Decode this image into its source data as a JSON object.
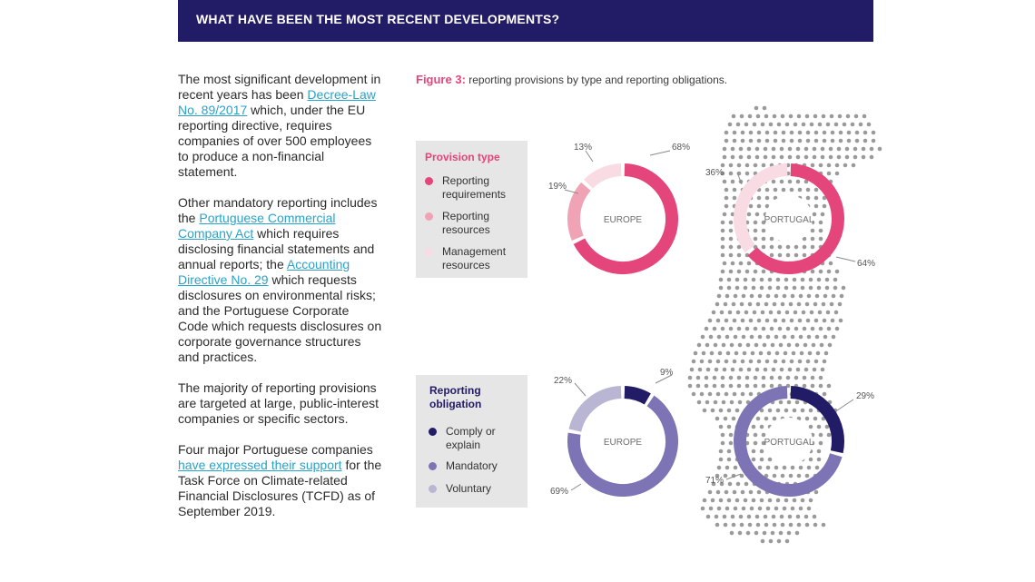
{
  "header": {
    "title": "WHAT HAVE BEEN THE MOST RECENT DEVELOPMENTS?"
  },
  "left_text": {
    "p1_a": "The most significant development in recent years has been ",
    "p1_link": "Decree-Law No. 89/2017",
    "p1_b": " which, under the EU reporting directive, requires companies of over 500 employees to produce a non-financial statement.",
    "p2_a": "Other mandatory reporting includes the ",
    "p2_link1": "Portuguese Commercial Company Act",
    "p2_b": " which requires disclosing financial statements and annual reports; the ",
    "p2_link2": "Accounting Directive No. 29",
    "p2_c": " which requests disclosures on environmental risks;  and the Portuguese Corporate Code which requests disclosures on corporate governance structures and practices.",
    "p3": "The majority of reporting provisions are targeted at large, public-interest companies or specific sectors.",
    "p4_a": "Four major Portuguese companies",
    "p4_link": " have expressed their support",
    "p4_b": " for the Task Force on Climate-related Financial Disclosures (TCFD) as of September 2019."
  },
  "figure": {
    "label": "Figure 3:",
    "caption": " reporting provisions by type and reporting obligations."
  },
  "legend_provision": {
    "title": "Provision type",
    "items": [
      {
        "label": "Reporting requirements",
        "color": "#e4457a"
      },
      {
        "label": "Reporting resources",
        "color": "#f1a3b6"
      },
      {
        "label": "Management resources",
        "color": "#f9dbe3"
      }
    ]
  },
  "legend_obligation": {
    "title": "Reporting obligation",
    "items": [
      {
        "label": "Comply or explain",
        "color": "#221b66"
      },
      {
        "label": "Mandatory",
        "color": "#7c74b5"
      },
      {
        "label": "Voluntary",
        "color": "#b9b6d3"
      }
    ]
  },
  "chart_data": [
    {
      "type": "pie",
      "title": "EUROPE",
      "categories": [
        "Reporting requirements",
        "Reporting resources",
        "Management resources"
      ],
      "values": [
        68,
        19,
        13
      ],
      "labels": [
        "68%",
        "19%",
        "13%"
      ],
      "colors": [
        "#e4457a",
        "#f1a3b6",
        "#f9dbe3"
      ]
    },
    {
      "type": "pie",
      "title": "PORTUGAL",
      "categories": [
        "Reporting requirements",
        "Reporting resources",
        "Management resources"
      ],
      "values": [
        64,
        0,
        36
      ],
      "labels": [
        "64%",
        "",
        "36%"
      ],
      "colors": [
        "#e4457a",
        "#f1a3b6",
        "#f9dbe3"
      ]
    },
    {
      "type": "pie",
      "title": "EUROPE",
      "categories": [
        "Comply or explain",
        "Mandatory",
        "Voluntary"
      ],
      "values": [
        9,
        69,
        22
      ],
      "labels": [
        "9%",
        "69%",
        "22%"
      ],
      "colors": [
        "#221b66",
        "#7c74b5",
        "#b9b6d3"
      ]
    },
    {
      "type": "pie",
      "title": "PORTUGAL",
      "categories": [
        "Comply or explain",
        "Mandatory",
        "Voluntary"
      ],
      "values": [
        29,
        71,
        0
      ],
      "labels": [
        "29%",
        "71%",
        ""
      ],
      "colors": [
        "#221b66",
        "#7c74b5",
        "#b9b6d3"
      ]
    }
  ]
}
